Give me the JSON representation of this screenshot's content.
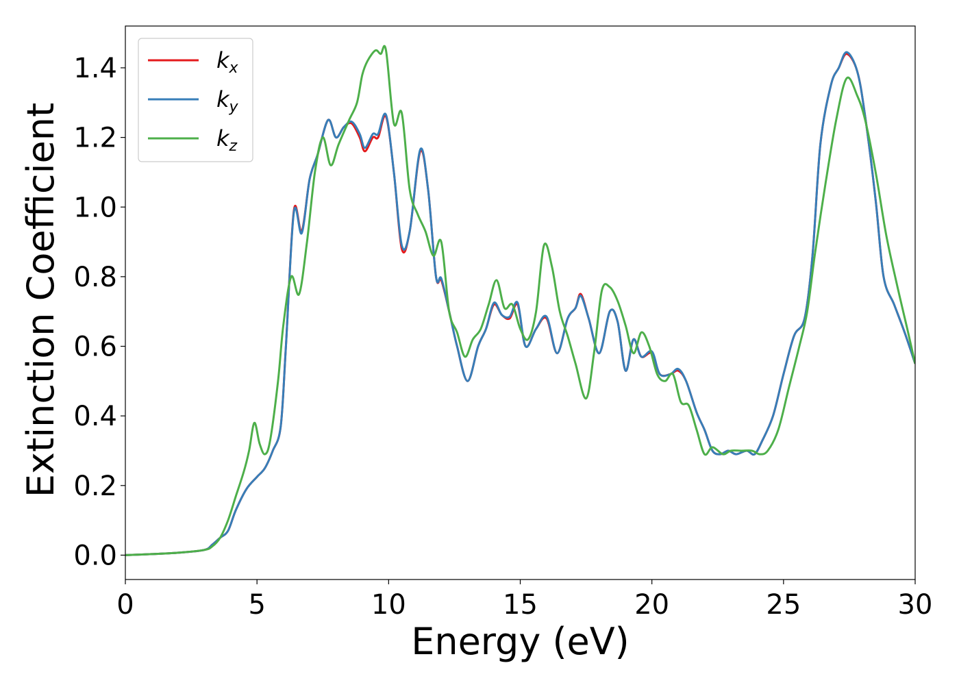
{
  "chart_data": {
    "type": "line",
    "xlabel": "Energy (eV)",
    "ylabel": "Extinction Coefficient",
    "xlim": [
      0,
      30
    ],
    "ylim": [
      -0.07,
      1.52
    ],
    "xticks": [
      0,
      5,
      10,
      15,
      20,
      25,
      30
    ],
    "xtick_labels": [
      "0",
      "5",
      "10",
      "15",
      "20",
      "25",
      "30"
    ],
    "yticks": [
      0.0,
      0.2,
      0.4,
      0.6,
      0.8,
      1.0,
      1.2,
      1.4
    ],
    "ytick_labels": [
      "0.0",
      "0.2",
      "0.4",
      "0.6",
      "0.8",
      "1.0",
      "1.2",
      "1.4"
    ],
    "grid": false,
    "legend_position": "top-left",
    "series": [
      {
        "name": "k_x",
        "label_main": "k",
        "label_sub": "x",
        "color": "#e41a1c",
        "x": [
          0,
          1,
          2,
          3,
          3.3,
          3.6,
          3.9,
          4.2,
          4.6,
          5.0,
          5.3,
          5.6,
          5.9,
          6.1,
          6.4,
          6.7,
          7.0,
          7.3,
          7.7,
          8.0,
          8.3,
          8.6,
          8.9,
          9.1,
          9.4,
          9.6,
          9.9,
          10.2,
          10.5,
          10.8,
          11.2,
          11.5,
          11.8,
          12.0,
          12.3,
          12.6,
          13.0,
          13.4,
          13.7,
          14.0,
          14.3,
          14.6,
          14.9,
          15.2,
          15.6,
          16.0,
          16.4,
          16.8,
          17.1,
          17.3,
          17.6,
          18.0,
          18.4,
          18.7,
          19.0,
          19.3,
          19.6,
          20.0,
          20.3,
          20.7,
          21.0,
          21.3,
          21.7,
          22.0,
          22.3,
          22.6,
          22.9,
          23.2,
          23.6,
          23.9,
          24.2,
          24.6,
          25.0,
          25.4,
          25.8,
          26.1,
          26.4,
          26.8,
          27.1,
          27.4,
          27.8,
          28.1,
          28.5,
          28.8,
          29.2,
          29.6,
          30.0
        ],
        "y": [
          0.0,
          0.003,
          0.007,
          0.015,
          0.03,
          0.05,
          0.07,
          0.13,
          0.19,
          0.225,
          0.25,
          0.3,
          0.37,
          0.6,
          0.99,
          0.93,
          1.08,
          1.15,
          1.25,
          1.2,
          1.23,
          1.24,
          1.2,
          1.16,
          1.2,
          1.2,
          1.26,
          1.1,
          0.88,
          0.93,
          1.16,
          1.05,
          0.8,
          0.79,
          0.7,
          0.6,
          0.5,
          0.6,
          0.65,
          0.72,
          0.69,
          0.68,
          0.72,
          0.6,
          0.65,
          0.68,
          0.58,
          0.68,
          0.71,
          0.75,
          0.68,
          0.58,
          0.7,
          0.67,
          0.53,
          0.62,
          0.57,
          0.58,
          0.52,
          0.52,
          0.53,
          0.5,
          0.41,
          0.36,
          0.3,
          0.29,
          0.3,
          0.29,
          0.3,
          0.29,
          0.33,
          0.4,
          0.52,
          0.63,
          0.68,
          0.86,
          1.18,
          1.35,
          1.4,
          1.44,
          1.39,
          1.26,
          1.02,
          0.8,
          0.72,
          0.64,
          0.55
        ]
      },
      {
        "name": "k_y",
        "label_main": "k",
        "label_sub": "y",
        "color": "#377eb8",
        "x": [
          0,
          1,
          2,
          3,
          3.3,
          3.6,
          3.9,
          4.2,
          4.6,
          5.0,
          5.3,
          5.6,
          5.9,
          6.1,
          6.4,
          6.7,
          7.0,
          7.3,
          7.7,
          8.0,
          8.3,
          8.6,
          8.9,
          9.1,
          9.4,
          9.6,
          9.9,
          10.2,
          10.5,
          10.8,
          11.2,
          11.5,
          11.8,
          12.0,
          12.3,
          12.6,
          13.0,
          13.4,
          13.7,
          14.0,
          14.3,
          14.6,
          14.9,
          15.2,
          15.6,
          16.0,
          16.4,
          16.8,
          17.1,
          17.3,
          17.6,
          18.0,
          18.4,
          18.7,
          19.0,
          19.3,
          19.6,
          20.0,
          20.3,
          20.7,
          21.0,
          21.3,
          21.7,
          22.0,
          22.3,
          22.6,
          22.9,
          23.2,
          23.6,
          23.9,
          24.2,
          24.6,
          25.0,
          25.4,
          25.8,
          26.1,
          26.4,
          26.8,
          27.1,
          27.4,
          27.8,
          28.1,
          28.5,
          28.8,
          29.2,
          29.6,
          30.0
        ],
        "y": [
          0.0,
          0.003,
          0.007,
          0.015,
          0.03,
          0.05,
          0.07,
          0.13,
          0.19,
          0.225,
          0.25,
          0.3,
          0.37,
          0.6,
          0.985,
          0.925,
          1.08,
          1.15,
          1.25,
          1.2,
          1.23,
          1.245,
          1.21,
          1.17,
          1.21,
          1.21,
          1.265,
          1.1,
          0.89,
          0.93,
          1.165,
          1.05,
          0.8,
          0.795,
          0.7,
          0.6,
          0.5,
          0.6,
          0.65,
          0.725,
          0.69,
          0.685,
          0.725,
          0.6,
          0.65,
          0.685,
          0.58,
          0.68,
          0.71,
          0.745,
          0.68,
          0.58,
          0.7,
          0.67,
          0.53,
          0.62,
          0.57,
          0.585,
          0.52,
          0.52,
          0.535,
          0.5,
          0.41,
          0.36,
          0.3,
          0.29,
          0.3,
          0.29,
          0.3,
          0.29,
          0.33,
          0.4,
          0.52,
          0.63,
          0.68,
          0.86,
          1.18,
          1.35,
          1.4,
          1.445,
          1.39,
          1.26,
          1.02,
          0.8,
          0.72,
          0.64,
          0.55
        ]
      },
      {
        "name": "k_z",
        "label_main": "k",
        "label_sub": "z",
        "color": "#4daf4a",
        "x": [
          0,
          1,
          2,
          3,
          3.3,
          3.6,
          3.9,
          4.2,
          4.5,
          4.7,
          4.9,
          5.1,
          5.3,
          5.5,
          5.8,
          6.0,
          6.3,
          6.6,
          6.9,
          7.2,
          7.5,
          7.8,
          8.1,
          8.5,
          8.8,
          9.0,
          9.2,
          9.5,
          9.7,
          9.9,
          10.2,
          10.5,
          10.8,
          11.1,
          11.4,
          11.7,
          12.0,
          12.3,
          12.6,
          12.9,
          13.2,
          13.5,
          13.8,
          14.1,
          14.4,
          14.7,
          15.0,
          15.3,
          15.6,
          15.9,
          16.2,
          16.5,
          16.8,
          17.1,
          17.5,
          17.8,
          18.1,
          18.4,
          18.7,
          19.0,
          19.3,
          19.6,
          19.9,
          20.2,
          20.5,
          20.8,
          21.1,
          21.4,
          21.7,
          22.0,
          22.3,
          22.7,
          23.0,
          23.4,
          23.8,
          24.1,
          24.4,
          24.8,
          25.2,
          25.6,
          25.9,
          26.2,
          26.6,
          27.0,
          27.4,
          27.8,
          28.1,
          28.5,
          28.9,
          29.3,
          29.7,
          30.0
        ],
        "y": [
          0.0,
          0.003,
          0.007,
          0.015,
          0.025,
          0.05,
          0.1,
          0.17,
          0.24,
          0.3,
          0.38,
          0.32,
          0.29,
          0.33,
          0.5,
          0.66,
          0.8,
          0.75,
          0.9,
          1.1,
          1.2,
          1.12,
          1.18,
          1.25,
          1.3,
          1.38,
          1.42,
          1.45,
          1.44,
          1.45,
          1.24,
          1.27,
          1.05,
          0.98,
          0.93,
          0.86,
          0.9,
          0.7,
          0.64,
          0.57,
          0.62,
          0.65,
          0.72,
          0.79,
          0.71,
          0.72,
          0.65,
          0.62,
          0.7,
          0.89,
          0.83,
          0.7,
          0.63,
          0.55,
          0.45,
          0.58,
          0.76,
          0.77,
          0.73,
          0.66,
          0.58,
          0.64,
          0.6,
          0.52,
          0.5,
          0.52,
          0.44,
          0.43,
          0.36,
          0.29,
          0.31,
          0.29,
          0.3,
          0.3,
          0.3,
          0.29,
          0.3,
          0.36,
          0.48,
          0.6,
          0.7,
          0.87,
          1.07,
          1.25,
          1.37,
          1.32,
          1.25,
          1.1,
          0.92,
          0.78,
          0.65,
          0.55
        ]
      }
    ]
  }
}
